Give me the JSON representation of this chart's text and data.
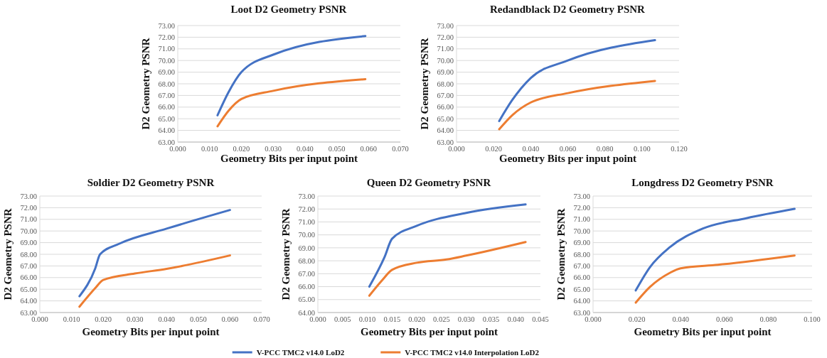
{
  "chart_data": [
    {
      "type": "line",
      "title": "Loot D2 Geometry PSNR",
      "xlabel": "Geometry Bits per input point",
      "ylabel": "D2 Geometry PSNR",
      "xlim": [
        0,
        0.07
      ],
      "ylim": [
        63,
        73
      ],
      "grid": "y",
      "legend": "bottom",
      "marker": "none",
      "line_style": "solid",
      "xticks": [
        {
          "value": 0,
          "label": "0.000"
        },
        {
          "value": 0.01,
          "label": "0.010"
        },
        {
          "value": 0.02,
          "label": "0.020"
        },
        {
          "value": 0.03,
          "label": "0.030"
        },
        {
          "value": 0.04,
          "label": "0.040"
        },
        {
          "value": 0.05,
          "label": "0.050"
        },
        {
          "value": 0.06,
          "label": "0.060"
        },
        {
          "value": 0.07,
          "label": "0.070"
        }
      ],
      "yticks": [
        {
          "value": 63,
          "label": "63.00"
        },
        {
          "value": 64,
          "label": "64.00"
        },
        {
          "value": 65,
          "label": "65.00"
        },
        {
          "value": 66,
          "label": "66.00"
        },
        {
          "value": 67,
          "label": "67.00"
        },
        {
          "value": 68,
          "label": "68.00"
        },
        {
          "value": 69,
          "label": "69.00"
        },
        {
          "value": 70,
          "label": "70.00"
        },
        {
          "value": 71,
          "label": "71.00"
        },
        {
          "value": 72,
          "label": "72.00"
        },
        {
          "value": 73,
          "label": "73.00"
        }
      ],
      "series": [
        {
          "name": "V-PCC TMC2 v14.0 LoD2",
          "color": "#4472c4",
          "x": [
            0.0125,
            0.016,
            0.02,
            0.03,
            0.059
          ],
          "values": [
            65.3,
            67.3,
            69.0,
            70.5,
            72.1
          ]
        },
        {
          "name": "V-PCC TMC2 v14.0 Interpolation LoD2",
          "color": "#ed7d31",
          "x": [
            0.0125,
            0.016,
            0.02,
            0.03,
            0.059
          ],
          "values": [
            64.35,
            65.7,
            66.7,
            67.4,
            68.4
          ]
        }
      ]
    },
    {
      "type": "line",
      "title": "Redandblack D2 Geometry PSNR",
      "xlabel": "Geometry Bits per input point",
      "ylabel": "D2 Geometry PSNR",
      "xlim": [
        0,
        0.12
      ],
      "ylim": [
        63,
        73
      ],
      "grid": "y",
      "marker": "none",
      "line_style": "solid",
      "xticks": [
        {
          "value": 0,
          "label": "0.000"
        },
        {
          "value": 0.02,
          "label": "0.020"
        },
        {
          "value": 0.04,
          "label": "0.040"
        },
        {
          "value": 0.06,
          "label": "0.060"
        },
        {
          "value": 0.08,
          "label": "0.080"
        },
        {
          "value": 0.1,
          "label": "0.100"
        },
        {
          "value": 0.12,
          "label": "0.120"
        }
      ],
      "yticks": [
        {
          "value": 63,
          "label": "63.00"
        },
        {
          "value": 64,
          "label": "64.00"
        },
        {
          "value": 65,
          "label": "65.00"
        },
        {
          "value": 66,
          "label": "66.00"
        },
        {
          "value": 67,
          "label": "67.00"
        },
        {
          "value": 68,
          "label": "68.00"
        },
        {
          "value": 69,
          "label": "69.00"
        },
        {
          "value": 70,
          "label": "70.00"
        },
        {
          "value": 71,
          "label": "71.00"
        },
        {
          "value": 72,
          "label": "72.00"
        },
        {
          "value": 73,
          "label": "73.00"
        }
      ],
      "series": [
        {
          "color": "#4472c4",
          "x": [
            0.023,
            0.03,
            0.04,
            0.06,
            0.107
          ],
          "values": [
            64.8,
            66.6,
            68.5,
            70.0,
            71.75
          ]
        },
        {
          "color": "#ed7d31",
          "x": [
            0.023,
            0.03,
            0.04,
            0.06,
            0.107
          ],
          "values": [
            64.1,
            65.3,
            66.4,
            67.2,
            68.25
          ]
        }
      ]
    },
    {
      "type": "line",
      "title": "Soldier D2 Geometry PSNR",
      "xlabel": "Geometry Bits per input point",
      "ylabel": "D2 Geometry PSNR",
      "xlim": [
        0,
        0.07
      ],
      "ylim": [
        63,
        73
      ],
      "grid": "y",
      "marker": "none",
      "line_style": "solid",
      "xticks": [
        {
          "value": 0,
          "label": "0.000"
        },
        {
          "value": 0.01,
          "label": "0.010"
        },
        {
          "value": 0.02,
          "label": "0.020"
        },
        {
          "value": 0.03,
          "label": "0.030"
        },
        {
          "value": 0.04,
          "label": "0.040"
        },
        {
          "value": 0.05,
          "label": "0.050"
        },
        {
          "value": 0.06,
          "label": "0.060"
        },
        {
          "value": 0.07,
          "label": "0.070"
        }
      ],
      "yticks": [
        {
          "value": 63,
          "label": "63.00"
        },
        {
          "value": 64,
          "label": "64.00"
        },
        {
          "value": 65,
          "label": "65.00"
        },
        {
          "value": 66,
          "label": "66.00"
        },
        {
          "value": 67,
          "label": "67.00"
        },
        {
          "value": 68,
          "label": "68.00"
        },
        {
          "value": 69,
          "label": "69.00"
        },
        {
          "value": 70,
          "label": "70.00"
        },
        {
          "value": 71,
          "label": "71.00"
        },
        {
          "value": 72,
          "label": "72.00"
        },
        {
          "value": 73,
          "label": "73.00"
        }
      ],
      "series": [
        {
          "color": "#4472c4",
          "x": [
            0.0125,
            0.0175,
            0.019,
            0.025,
            0.04,
            0.06
          ],
          "values": [
            64.4,
            66.8,
            68.0,
            68.9,
            70.2,
            71.8
          ]
        },
        {
          "color": "#ed7d31",
          "x": [
            0.0125,
            0.0175,
            0.02,
            0.03,
            0.04,
            0.06
          ],
          "values": [
            63.5,
            65.1,
            65.8,
            66.35,
            66.75,
            67.9
          ]
        }
      ]
    },
    {
      "type": "line",
      "title": "Queen D2 Geometry PSNR",
      "xlabel": "Geometry Bits per input point",
      "ylabel": "D2 Geometry PSNR",
      "xlim": [
        0,
        0.045
      ],
      "ylim": [
        64,
        73
      ],
      "grid": "y",
      "marker": "none",
      "line_style": "solid",
      "xticks": [
        {
          "value": 0,
          "label": "0.000"
        },
        {
          "value": 0.005,
          "label": "0.005"
        },
        {
          "value": 0.01,
          "label": "0.010"
        },
        {
          "value": 0.015,
          "label": "0.015"
        },
        {
          "value": 0.02,
          "label": "0.020"
        },
        {
          "value": 0.025,
          "label": "0.025"
        },
        {
          "value": 0.03,
          "label": "0.030"
        },
        {
          "value": 0.035,
          "label": "0.035"
        },
        {
          "value": 0.04,
          "label": "0.040"
        },
        {
          "value": 0.045,
          "label": "0.045"
        }
      ],
      "yticks": [
        {
          "value": 64,
          "label": "64.00"
        },
        {
          "value": 65,
          "label": "65.00"
        },
        {
          "value": 66,
          "label": "66.00"
        },
        {
          "value": 67,
          "label": "67.00"
        },
        {
          "value": 68,
          "label": "68.00"
        },
        {
          "value": 69,
          "label": "69.00"
        },
        {
          "value": 70,
          "label": "70.00"
        },
        {
          "value": 71,
          "label": "71.00"
        },
        {
          "value": 72,
          "label": "72.00"
        },
        {
          "value": 73,
          "label": "73.00"
        }
      ],
      "series": [
        {
          "color": "#4472c4",
          "x": [
            0.0104,
            0.0135,
            0.015,
            0.02,
            0.03,
            0.042
          ],
          "values": [
            66.0,
            68.3,
            69.7,
            70.7,
            71.7,
            72.35
          ]
        },
        {
          "color": "#ed7d31",
          "x": [
            0.0104,
            0.013,
            0.015,
            0.02,
            0.026,
            0.03,
            0.042
          ],
          "values": [
            65.3,
            66.5,
            67.3,
            67.85,
            68.1,
            68.4,
            69.45
          ]
        }
      ]
    },
    {
      "type": "line",
      "title": "Longdress D2 Geometry PSNR",
      "xlabel": "Geometry Bits per input point",
      "ylabel": "D2 Geometry PSNR",
      "xlim": [
        0,
        0.1
      ],
      "ylim": [
        63,
        73
      ],
      "grid": "y",
      "marker": "none",
      "line_style": "solid",
      "xticks": [
        {
          "value": 0,
          "label": "0.000"
        },
        {
          "value": 0.02,
          "label": "0.020"
        },
        {
          "value": 0.04,
          "label": "0.040"
        },
        {
          "value": 0.06,
          "label": "0.060"
        },
        {
          "value": 0.08,
          "label": "0.080"
        },
        {
          "value": 0.1,
          "label": "0.100"
        }
      ],
      "yticks": [
        {
          "value": 63,
          "label": "63.00"
        },
        {
          "value": 64,
          "label": "64.00"
        },
        {
          "value": 65,
          "label": "65.00"
        },
        {
          "value": 66,
          "label": "66.00"
        },
        {
          "value": 67,
          "label": "67.00"
        },
        {
          "value": 68,
          "label": "68.00"
        },
        {
          "value": 69,
          "label": "69.00"
        },
        {
          "value": 70,
          "label": "70.00"
        },
        {
          "value": 71,
          "label": "71.00"
        },
        {
          "value": 72,
          "label": "72.00"
        },
        {
          "value": 73,
          "label": "73.00"
        }
      ],
      "series": [
        {
          "color": "#4472c4",
          "x": [
            0.0195,
            0.026,
            0.035,
            0.05,
            0.07,
            0.092
          ],
          "values": [
            64.9,
            66.9,
            68.6,
            70.2,
            71.1,
            71.9
          ]
        },
        {
          "color": "#ed7d31",
          "x": [
            0.0195,
            0.026,
            0.035,
            0.04,
            0.057,
            0.092
          ],
          "values": [
            63.85,
            65.2,
            66.4,
            66.8,
            67.1,
            67.9
          ]
        }
      ]
    }
  ]
}
